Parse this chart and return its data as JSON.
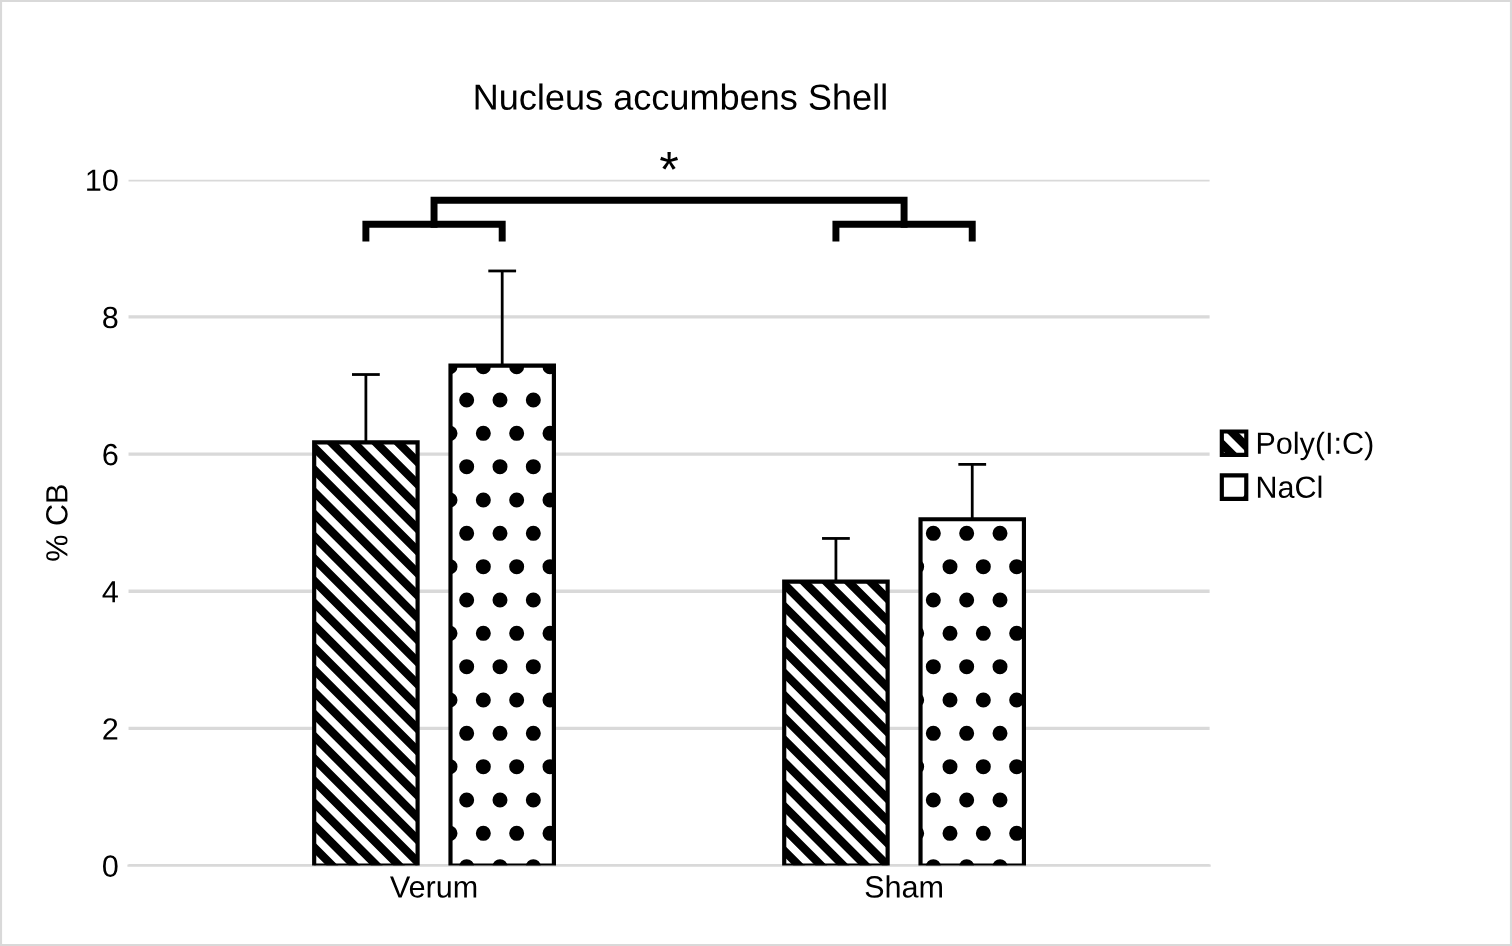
{
  "chart_data": {
    "type": "bar",
    "title": "Nucleus accumbens Shell",
    "ylabel": "% CB",
    "categories": [
      "Verum",
      "Sham"
    ],
    "series": [
      {
        "name": "Poly(I:C)",
        "color": "#000000",
        "values": [
          6.17,
          4.14
        ],
        "errors": [
          0.99,
          0.63
        ]
      },
      {
        "name": "NaCl",
        "color": "#000000",
        "values": [
          7.29,
          5.05
        ],
        "errors": [
          1.38,
          0.8
        ]
      }
    ],
    "ylim": [
      0,
      10
    ],
    "yticks": [
      0,
      2,
      4,
      6,
      8,
      10
    ],
    "grid": "y",
    "legend": "right",
    "annotations": [
      "*"
    ]
  }
}
